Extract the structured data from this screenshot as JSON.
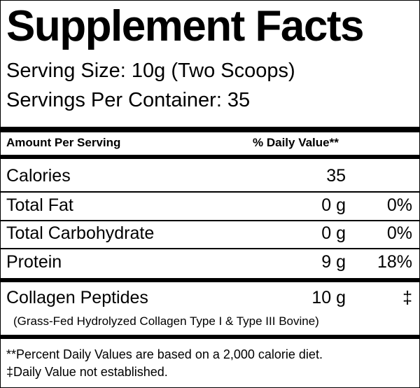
{
  "header": {
    "title": "Supplement Facts",
    "serving_size": "Serving Size: 10g (Two Scoops)",
    "servings_per_container": "Servings Per Container: 35"
  },
  "table": {
    "columns": [
      "Amount Per Serving",
      "% Daily Value**"
    ],
    "rows": [
      {
        "name": "Calories",
        "amount": "35"
      },
      {
        "name": "Total Fat",
        "amount": "0 g",
        "dv": "0%"
      },
      {
        "name": "Total Carbohydrate",
        "amount": "0 g",
        "dv": "0%"
      },
      {
        "name": "Protein",
        "amount": "9 g",
        "dv": "18%"
      },
      {
        "name": "Collagen Peptides",
        "amount": "10 g",
        "dv": "‡",
        "note": "(Grass-Fed Hydrolyzed Collagen Type I & Type III Bovine)"
      }
    ]
  },
  "footnotes": [
    "**Percent Daily Values are based on a 2,000 calorie diet.",
    "‡Daily Value not established."
  ]
}
